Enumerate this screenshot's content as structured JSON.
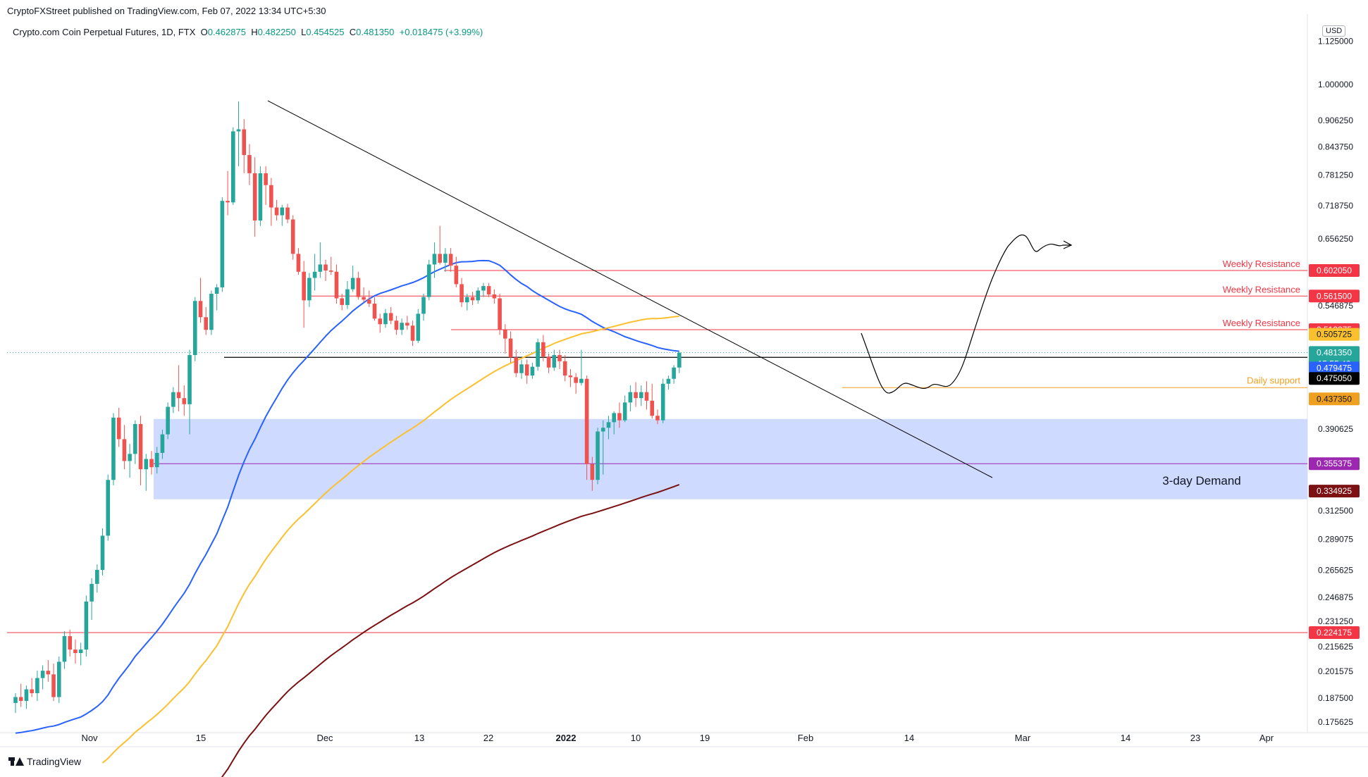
{
  "header": {
    "publisher_line": "CryptoFXStreet published on TradingView.com, Feb 07, 2022 13:34 UTC+5:30"
  },
  "symbol": {
    "name": "Crypto.com Coin Perpetual Futures, 1D, FTX",
    "o_label": "O",
    "o_value": "0.462875",
    "h_label": "H",
    "h_value": "0.482250",
    "l_label": "L",
    "l_value": "0.454525",
    "c_label": "C",
    "c_value": "0.481350",
    "change": "+0.018475 (+3.99%)"
  },
  "currency_label": "USD",
  "colors": {
    "up": "#26a69a",
    "down": "#ef5350",
    "ma50": "#2962ff",
    "ma100": "#fbc02d",
    "ma200": "#7b1113",
    "demand_zone": "#c9d6ff",
    "resistance": "#f23645",
    "support": "#f0a020",
    "purple": "#9c27b0"
  },
  "chart_data": {
    "type": "candlestick",
    "title": "Crypto.com Coin Perpetual Futures, 1D, FTX",
    "y_scale": "log",
    "ylim": [
      0.17,
      1.14
    ],
    "price_axis_ticks": [
      "1.125000",
      "1.000000",
      "0.906250",
      "0.843750",
      "0.781250",
      "0.718750",
      "0.656250",
      "0.546875",
      "0.390625",
      "0.312500",
      "0.289075",
      "0.265625",
      "0.246875",
      "0.231250",
      "0.215625",
      "0.201575",
      "0.187500",
      "0.175625"
    ],
    "time_axis_ticks": [
      "Nov",
      "15",
      "Dec",
      "13",
      "22",
      "2022",
      "10",
      "19",
      "Feb",
      "14",
      "Mar",
      "14",
      "23",
      "Apr"
    ],
    "price_labels": [
      {
        "value": "0.602050",
        "color": "#f23645"
      },
      {
        "value": "0.561500",
        "color": "#f23645"
      },
      {
        "value": "0.512275",
        "color": "#f23645"
      },
      {
        "value": "0.505725",
        "color": "#fbc02d"
      },
      {
        "value": "0.481350",
        "color": "#26a69a"
      },
      {
        "value": "15:55:46",
        "color": "#26a69a"
      },
      {
        "value": "0.479475",
        "color": "#2962ff"
      },
      {
        "value": "0.475050",
        "color": "#000000"
      },
      {
        "value": "0.437350",
        "color": "#f0a020"
      },
      {
        "value": "0.355375",
        "color": "#9c27b0"
      },
      {
        "value": "0.334925",
        "color": "#7b1113"
      },
      {
        "value": "0.224175",
        "color": "#f23645"
      }
    ],
    "annotations": [
      {
        "text": "Weekly Resistance",
        "price": 0.60205
      },
      {
        "text": "Weekly Resistance",
        "price": 0.5615
      },
      {
        "text": "Weekly Resistance",
        "price": 0.512275
      },
      {
        "text": "Daily support",
        "price": 0.43735
      },
      {
        "text": "3-day Demand",
        "price": 0.345
      }
    ],
    "demand_zone": {
      "top": 0.4015,
      "bottom": 0.3225
    },
    "candles": [
      [
        0.185,
        0.19,
        0.18,
        0.188
      ],
      [
        0.188,
        0.195,
        0.183,
        0.186
      ],
      [
        0.186,
        0.194,
        0.182,
        0.192
      ],
      [
        0.192,
        0.198,
        0.188,
        0.19
      ],
      [
        0.19,
        0.202,
        0.186,
        0.198
      ],
      [
        0.198,
        0.205,
        0.192,
        0.202
      ],
      [
        0.202,
        0.208,
        0.196,
        0.2
      ],
      [
        0.2,
        0.206,
        0.186,
        0.188
      ],
      [
        0.188,
        0.21,
        0.185,
        0.207
      ],
      [
        0.207,
        0.225,
        0.203,
        0.222
      ],
      [
        0.222,
        0.226,
        0.21,
        0.214
      ],
      [
        0.214,
        0.22,
        0.206,
        0.212
      ],
      [
        0.212,
        0.218,
        0.205,
        0.214
      ],
      [
        0.214,
        0.248,
        0.21,
        0.244
      ],
      [
        0.244,
        0.26,
        0.232,
        0.256
      ],
      [
        0.256,
        0.27,
        0.25,
        0.266
      ],
      [
        0.266,
        0.298,
        0.262,
        0.292
      ],
      [
        0.292,
        0.345,
        0.288,
        0.34
      ],
      [
        0.34,
        0.408,
        0.335,
        0.403
      ],
      [
        0.403,
        0.414,
        0.372,
        0.38
      ],
      [
        0.38,
        0.395,
        0.35,
        0.358
      ],
      [
        0.358,
        0.375,
        0.342,
        0.365
      ],
      [
        0.365,
        0.4,
        0.355,
        0.396
      ],
      [
        0.396,
        0.405,
        0.335,
        0.35
      ],
      [
        0.35,
        0.365,
        0.33,
        0.36
      ],
      [
        0.36,
        0.368,
        0.345,
        0.352
      ],
      [
        0.352,
        0.372,
        0.346,
        0.366
      ],
      [
        0.366,
        0.39,
        0.36,
        0.385
      ],
      [
        0.385,
        0.42,
        0.38,
        0.415
      ],
      [
        0.415,
        0.438,
        0.408,
        0.432
      ],
      [
        0.432,
        0.465,
        0.41,
        0.425
      ],
      [
        0.425,
        0.44,
        0.405,
        0.418
      ],
      [
        0.418,
        0.485,
        0.385,
        0.478
      ],
      [
        0.478,
        0.56,
        0.47,
        0.554
      ],
      [
        0.554,
        0.59,
        0.522,
        0.53
      ],
      [
        0.53,
        0.545,
        0.505,
        0.512
      ],
      [
        0.512,
        0.57,
        0.505,
        0.565
      ],
      [
        0.565,
        0.58,
        0.54,
        0.575
      ],
      [
        0.575,
        0.735,
        0.568,
        0.728
      ],
      [
        0.728,
        0.79,
        0.7,
        0.725
      ],
      [
        0.725,
        0.89,
        0.72,
        0.88
      ],
      [
        0.88,
        0.955,
        0.8,
        0.885
      ],
      [
        0.885,
        0.91,
        0.785,
        0.825
      ],
      [
        0.825,
        0.85,
        0.76,
        0.785
      ],
      [
        0.785,
        0.82,
        0.66,
        0.69
      ],
      [
        0.69,
        0.8,
        0.68,
        0.785
      ],
      [
        0.785,
        0.8,
        0.72,
        0.76
      ],
      [
        0.76,
        0.775,
        0.68,
        0.715
      ],
      [
        0.715,
        0.73,
        0.69,
        0.7
      ],
      [
        0.7,
        0.72,
        0.68,
        0.715
      ],
      [
        0.715,
        0.722,
        0.685,
        0.692
      ],
      [
        0.692,
        0.7,
        0.62,
        0.63
      ],
      [
        0.63,
        0.64,
        0.595,
        0.6
      ],
      [
        0.6,
        0.618,
        0.515,
        0.555
      ],
      [
        0.555,
        0.598,
        0.545,
        0.59
      ],
      [
        0.59,
        0.63,
        0.57,
        0.6
      ],
      [
        0.6,
        0.65,
        0.59,
        0.612
      ],
      [
        0.612,
        0.62,
        0.585,
        0.602
      ],
      [
        0.602,
        0.625,
        0.595,
        0.6
      ],
      [
        0.6,
        0.612,
        0.55,
        0.558
      ],
      [
        0.558,
        0.565,
        0.54,
        0.548
      ],
      [
        0.548,
        0.585,
        0.542,
        0.572
      ],
      [
        0.572,
        0.61,
        0.568,
        0.59
      ],
      [
        0.59,
        0.6,
        0.556,
        0.56
      ],
      [
        0.56,
        0.575,
        0.552,
        0.556
      ],
      [
        0.556,
        0.57,
        0.545,
        0.55
      ],
      [
        0.55,
        0.56,
        0.525,
        0.528
      ],
      [
        0.528,
        0.535,
        0.508,
        0.52
      ],
      [
        0.52,
        0.542,
        0.515,
        0.536
      ],
      [
        0.536,
        0.545,
        0.52,
        0.525
      ],
      [
        0.525,
        0.532,
        0.505,
        0.512
      ],
      [
        0.512,
        0.528,
        0.505,
        0.522
      ],
      [
        0.522,
        0.532,
        0.512,
        0.518
      ],
      [
        0.518,
        0.525,
        0.49,
        0.497
      ],
      [
        0.497,
        0.542,
        0.494,
        0.535
      ],
      [
        0.535,
        0.565,
        0.525,
        0.56
      ],
      [
        0.56,
        0.62,
        0.555,
        0.612
      ],
      [
        0.612,
        0.65,
        0.59,
        0.63
      ],
      [
        0.63,
        0.68,
        0.612,
        0.615
      ],
      [
        0.615,
        0.64,
        0.6,
        0.63
      ],
      [
        0.63,
        0.64,
        0.6,
        0.61
      ],
      [
        0.61,
        0.625,
        0.575,
        0.58
      ],
      [
        0.58,
        0.59,
        0.545,
        0.552
      ],
      [
        0.552,
        0.565,
        0.54,
        0.56
      ],
      [
        0.56,
        0.568,
        0.548,
        0.555
      ],
      [
        0.555,
        0.575,
        0.55,
        0.57
      ],
      [
        0.57,
        0.582,
        0.56,
        0.577
      ],
      [
        0.577,
        0.582,
        0.56,
        0.564
      ],
      [
        0.564,
        0.572,
        0.55,
        0.558
      ],
      [
        0.558,
        0.565,
        0.505,
        0.512
      ],
      [
        0.512,
        0.52,
        0.48,
        0.5
      ],
      [
        0.5,
        0.51,
        0.468,
        0.475
      ],
      [
        0.475,
        0.485,
        0.45,
        0.455
      ],
      [
        0.455,
        0.472,
        0.448,
        0.466
      ],
      [
        0.466,
        0.472,
        0.442,
        0.452
      ],
      [
        0.452,
        0.468,
        0.448,
        0.463
      ],
      [
        0.463,
        0.5,
        0.458,
        0.495
      ],
      [
        0.495,
        0.505,
        0.47,
        0.476
      ],
      [
        0.476,
        0.48,
        0.455,
        0.462
      ],
      [
        0.462,
        0.485,
        0.458,
        0.478
      ],
      [
        0.478,
        0.485,
        0.46,
        0.47
      ],
      [
        0.47,
        0.478,
        0.445,
        0.452
      ],
      [
        0.452,
        0.46,
        0.438,
        0.45
      ],
      [
        0.45,
        0.455,
        0.43,
        0.443
      ],
      [
        0.443,
        0.485,
        0.44,
        0.448
      ],
      [
        0.448,
        0.452,
        0.34,
        0.355
      ],
      [
        0.355,
        0.362,
        0.33,
        0.34
      ],
      [
        0.34,
        0.392,
        0.336,
        0.388
      ],
      [
        0.388,
        0.4,
        0.345,
        0.392
      ],
      [
        0.392,
        0.405,
        0.38,
        0.398
      ],
      [
        0.398,
        0.41,
        0.385,
        0.408
      ],
      [
        0.408,
        0.42,
        0.392,
        0.4
      ],
      [
        0.4,
        0.428,
        0.398,
        0.42
      ],
      [
        0.42,
        0.44,
        0.41,
        0.432
      ],
      [
        0.432,
        0.444,
        0.415,
        0.425
      ],
      [
        0.425,
        0.44,
        0.416,
        0.432
      ],
      [
        0.432,
        0.445,
        0.412,
        0.422
      ],
      [
        0.422,
        0.442,
        0.402,
        0.405
      ],
      [
        0.405,
        0.412,
        0.396,
        0.4
      ],
      [
        0.4,
        0.448,
        0.397,
        0.442
      ],
      [
        0.442,
        0.452,
        0.435,
        0.448
      ],
      [
        0.448,
        0.465,
        0.442,
        0.462
      ],
      [
        0.462,
        0.482,
        0.455,
        0.481
      ]
    ]
  }
}
